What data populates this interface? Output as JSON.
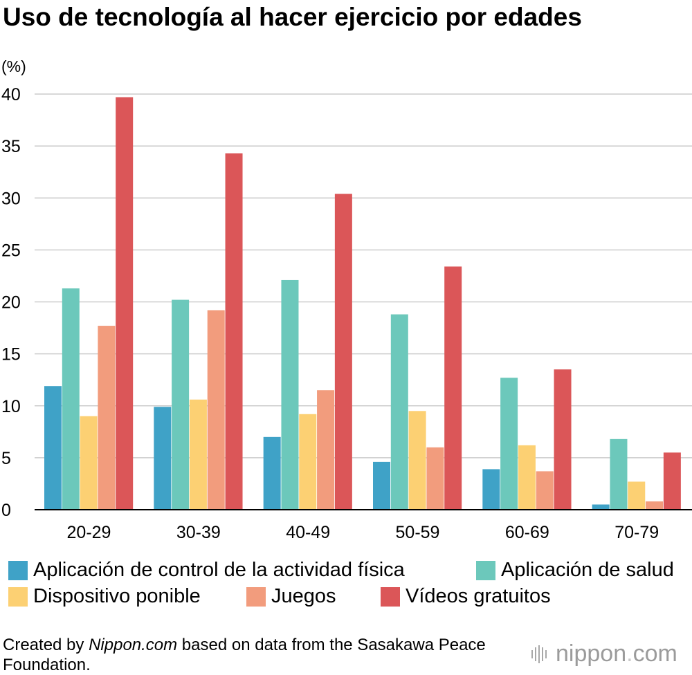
{
  "chart_data": {
    "type": "bar",
    "title": "Uso de tecnología al hacer ejercicio por edades",
    "ylabel": "(%)",
    "xlabel": "",
    "ylim": [
      0,
      40
    ],
    "yticks": [
      "0",
      "5",
      "10",
      "15",
      "20",
      "25",
      "30",
      "35",
      "40"
    ],
    "grid": true,
    "legend_position": "bottom",
    "categories": [
      "20-29",
      "30-39",
      "40-49",
      "50-59",
      "60-69",
      "70-79"
    ],
    "series": [
      {
        "name": "Aplicación de control de la actividad física",
        "color": "#3fa2c7",
        "values": [
          11.9,
          9.9,
          7.0,
          4.6,
          3.9,
          0.5
        ]
      },
      {
        "name": "Aplicación de salud",
        "color": "#6cc8bb",
        "values": [
          21.3,
          20.2,
          22.1,
          18.8,
          12.7,
          6.8
        ]
      },
      {
        "name": "Dispositivo ponible",
        "color": "#fcd073",
        "values": [
          9.0,
          10.6,
          9.2,
          9.5,
          6.2,
          2.7
        ]
      },
      {
        "name": "Juegos",
        "color": "#f29c7d",
        "values": [
          17.7,
          19.2,
          11.5,
          6.0,
          3.7,
          0.8
        ]
      },
      {
        "name": "Vídeos gratuitos",
        "color": "#db5658",
        "values": [
          39.7,
          34.3,
          30.4,
          23.4,
          13.5,
          5.5
        ]
      }
    ]
  },
  "footnote": {
    "prefix": "Created by ",
    "source": "Nippon.com",
    "suffix": " based on data from the Sasakawa Peace Foundation."
  },
  "logo": {
    "name": "nippon",
    "dot": ".",
    "tld": "com"
  }
}
